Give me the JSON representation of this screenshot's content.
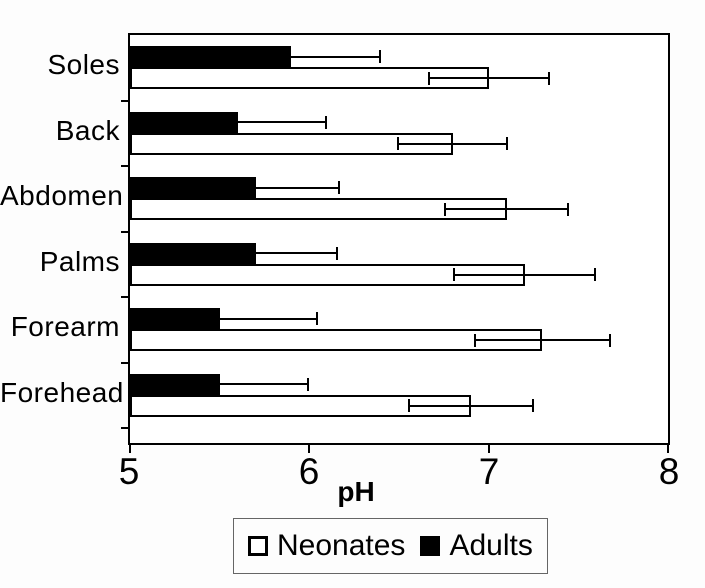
{
  "figure": {
    "background": "#fdfdfd",
    "plot_bg": "#ffffff",
    "line_color": "#000000"
  },
  "chart_data": {
    "type": "bar",
    "orientation": "horizontal",
    "title": "",
    "xlabel": "pH",
    "ylabel": "",
    "xlim": [
      5,
      8
    ],
    "x_ticks": [
      5,
      6,
      7,
      8
    ],
    "grid": false,
    "legend_position": "bottom",
    "categories": [
      "Soles",
      "Back",
      "Abdomen",
      "Palms",
      "Forearm",
      "Forehead"
    ],
    "series": [
      {
        "name": "Neonates",
        "color": "#ffffff",
        "swatch": "white-square",
        "error_style": "both",
        "values": [
          7.0,
          6.8,
          7.1,
          7.2,
          7.3,
          6.9
        ],
        "errors": [
          0.34,
          0.31,
          0.35,
          0.4,
          0.38,
          0.35
        ]
      },
      {
        "name": "Adults",
        "color": "#000000",
        "swatch": "black-square",
        "error_style": "plus",
        "values": [
          5.9,
          5.6,
          5.7,
          5.7,
          5.5,
          5.5
        ],
        "errors": [
          0.5,
          0.5,
          0.47,
          0.46,
          0.55,
          0.5
        ]
      }
    ]
  }
}
